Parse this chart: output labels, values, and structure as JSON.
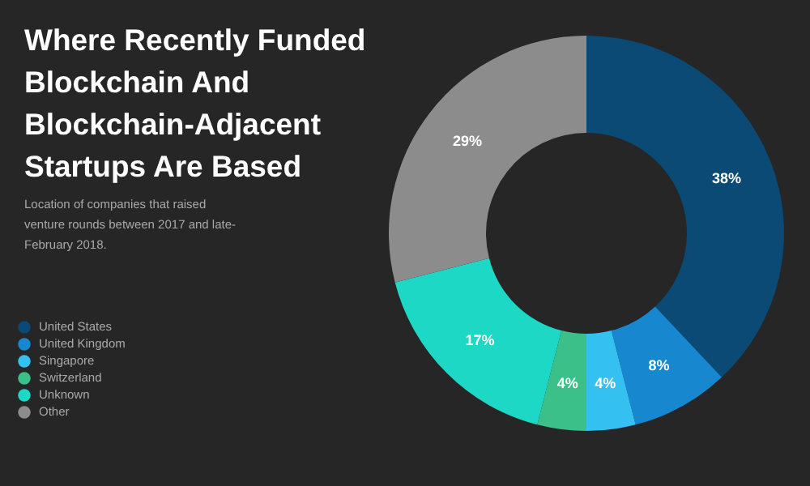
{
  "chart_data": {
    "type": "donut",
    "title": "Where Recently Funded Blockchain And Blockchain-Adjacent Startups Are Based",
    "subtitle": "Location of companies that raised venture rounds between 2017 and late-February 2018.",
    "categories": [
      "United States",
      "United Kingdom",
      "Singapore",
      "Switzerland",
      "Unknown",
      "Other"
    ],
    "values": [
      38,
      8,
      4,
      4,
      17,
      29
    ],
    "value_labels": [
      "38%",
      "8%",
      "4%",
      "4%",
      "17%",
      "29%"
    ],
    "colors": [
      "#0a4a74",
      "#1788d0",
      "#34c0f0",
      "#3cc08a",
      "#1cd8c4",
      "#8c8c8c"
    ],
    "legend": "left"
  }
}
